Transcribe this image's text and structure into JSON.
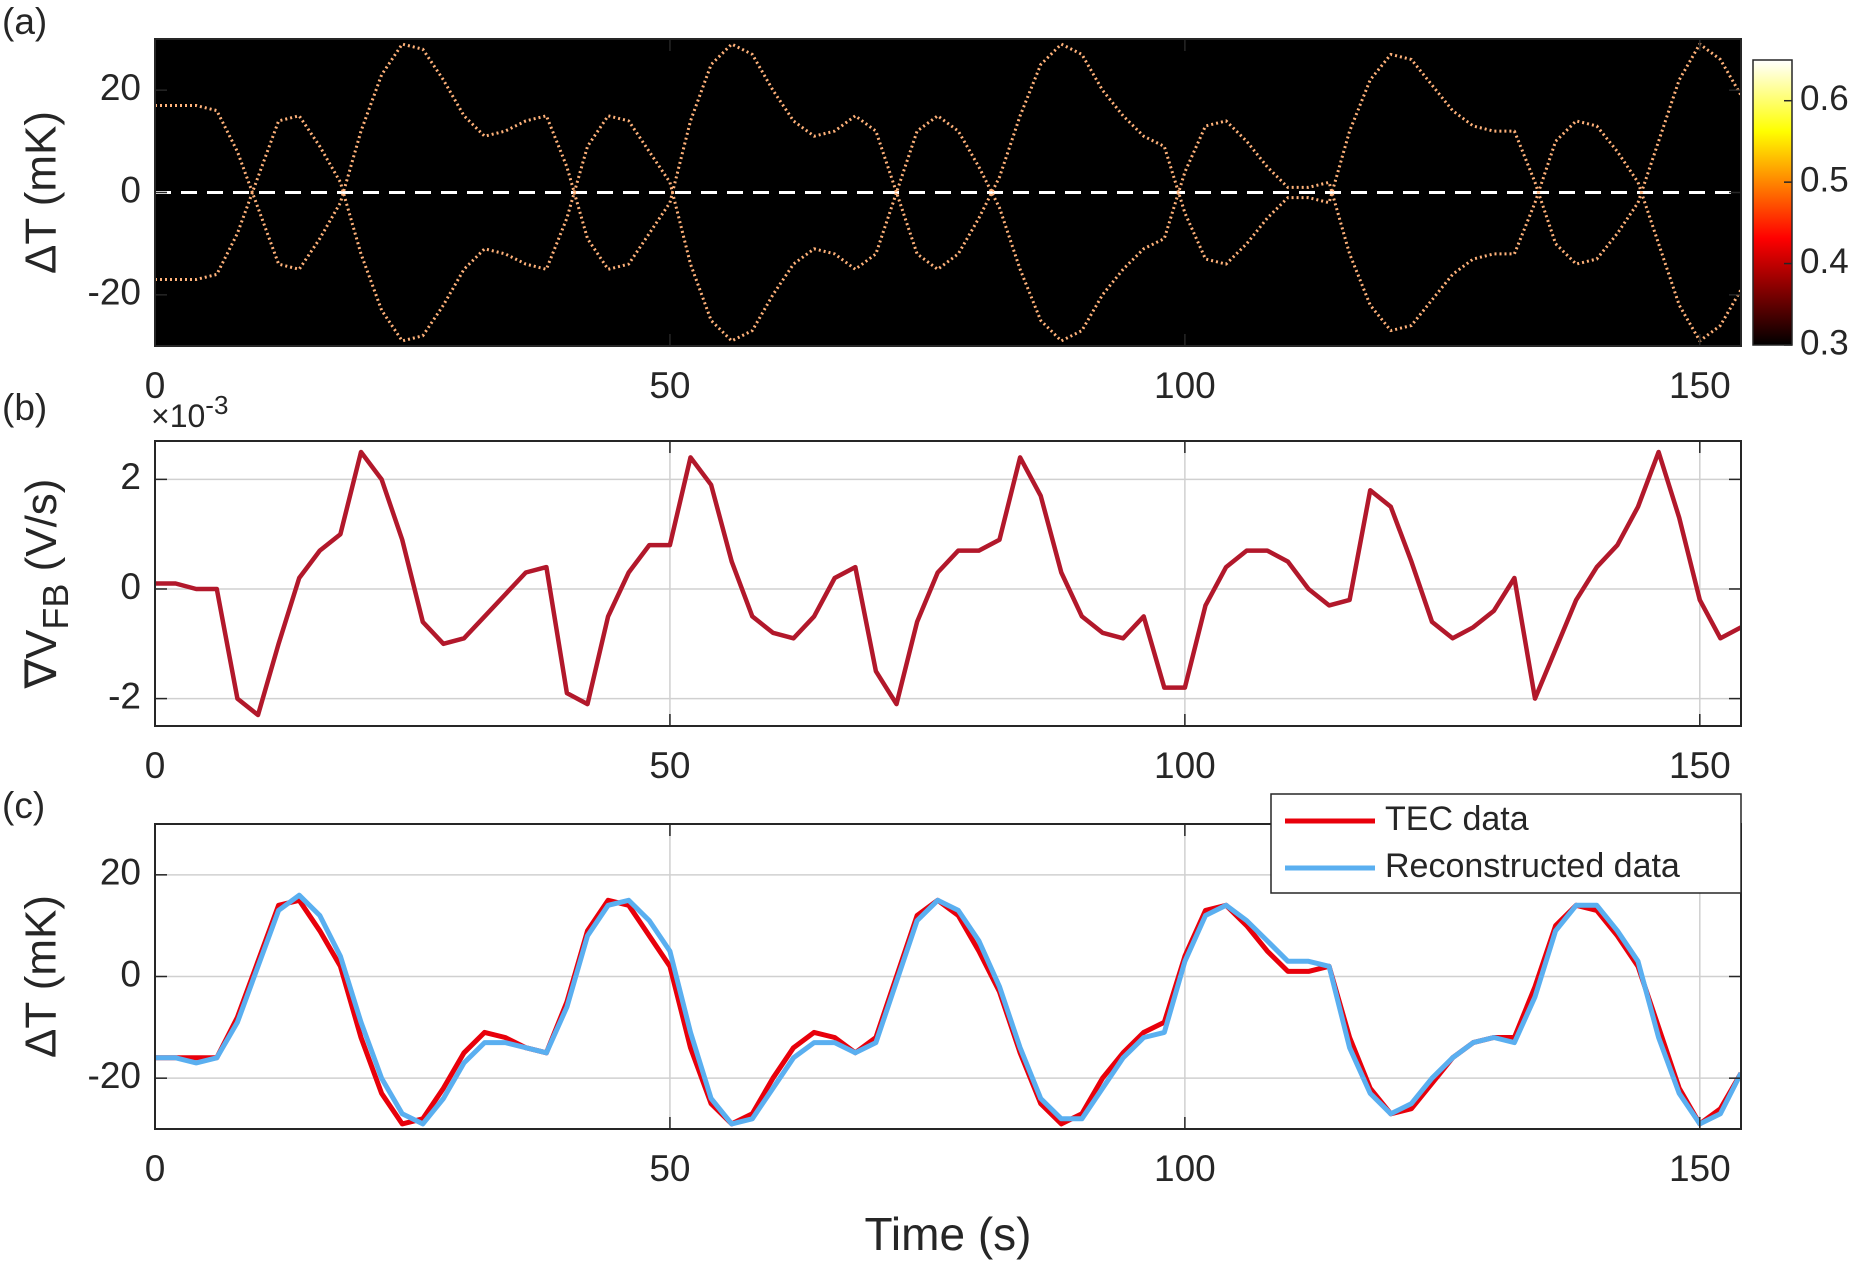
{
  "chart_data": [
    {
      "type": "heatmap-trace",
      "panel_label": "(a)",
      "ylabel": "ΔT (mK)",
      "x": [
        0,
        2,
        4,
        6,
        8,
        10,
        12,
        14,
        16,
        18,
        20,
        22,
        24,
        26,
        28,
        30,
        32,
        34,
        36,
        38,
        40,
        42,
        44,
        46,
        48,
        50,
        52,
        54,
        56,
        58,
        60,
        62,
        64,
        66,
        68,
        70,
        72,
        74,
        76,
        78,
        80,
        82,
        84,
        86,
        88,
        90,
        92,
        94,
        96,
        98,
        100,
        102,
        104,
        106,
        108,
        110,
        112,
        114,
        116,
        118,
        120,
        122,
        124,
        126,
        128,
        130,
        132,
        134,
        136,
        138,
        140,
        142,
        144,
        146,
        148,
        150,
        152,
        154
      ],
      "series": [
        {
          "color": "#ffb27a",
          "values": [
            17,
            17,
            17,
            16,
            8,
            -3,
            -14,
            -15,
            -9,
            -2,
            12,
            23,
            29,
            28,
            22,
            15,
            11,
            12,
            14,
            15,
            5,
            -9,
            -15,
            -14,
            -8,
            -2,
            14,
            25,
            29,
            27,
            20,
            14,
            11,
            12,
            15,
            12,
            0,
            -12,
            -15,
            -12,
            -5,
            3,
            15,
            25,
            29,
            27,
            20,
            15,
            11,
            9,
            -4,
            -13,
            -14,
            -10,
            -5,
            -1,
            -1,
            -2,
            12,
            22,
            27,
            26,
            21,
            16,
            13,
            12,
            12,
            2,
            -10,
            -14,
            -13,
            -8,
            -2,
            10,
            22,
            29,
            26,
            19
          ]
        },
        {
          "color": "#ffb27a",
          "values": [
            -17,
            -17,
            -17,
            -16,
            -8,
            3,
            14,
            15,
            9,
            2,
            -12,
            -23,
            -29,
            -28,
            -22,
            -15,
            -11,
            -12,
            -14,
            -15,
            -5,
            9,
            15,
            14,
            8,
            2,
            -14,
            -25,
            -29,
            -27,
            -20,
            -14,
            -11,
            -12,
            -15,
            -12,
            0,
            12,
            15,
            12,
            5,
            -3,
            -15,
            -25,
            -29,
            -27,
            -20,
            -15,
            -11,
            -9,
            4,
            13,
            14,
            10,
            5,
            1,
            1,
            2,
            -12,
            -22,
            -27,
            -26,
            -21,
            -16,
            -13,
            -12,
            -12,
            -2,
            10,
            14,
            13,
            8,
            2,
            -10,
            -22,
            -29,
            -26,
            -19
          ]
        }
      ],
      "hline": 0,
      "xlim": [
        0,
        154
      ],
      "xticks": [
        0,
        50,
        100,
        150
      ],
      "ylim": [
        -30,
        30
      ],
      "yticks": [
        -20,
        0,
        20
      ],
      "colorbar": {
        "colormap": "hot",
        "lim": [
          0.3,
          0.65
        ],
        "ticks": [
          0.3,
          0.4,
          0.5,
          0.6
        ]
      }
    },
    {
      "type": "line",
      "panel_label": "(b)",
      "ylabel": {
        "symbol": "∇V",
        "subscript": "FB",
        "unit": "(V/s)"
      },
      "y_multiplier": {
        "base": "×10",
        "exponent": "-3"
      },
      "x": [
        0,
        2,
        4,
        6,
        8,
        10,
        12,
        14,
        16,
        18,
        20,
        22,
        24,
        26,
        28,
        30,
        32,
        34,
        36,
        38,
        40,
        42,
        44,
        46,
        48,
        50,
        52,
        54,
        56,
        58,
        60,
        62,
        64,
        66,
        68,
        70,
        72,
        74,
        76,
        78,
        80,
        82,
        84,
        86,
        88,
        90,
        92,
        94,
        96,
        98,
        100,
        102,
        104,
        106,
        108,
        110,
        112,
        114,
        116,
        118,
        120,
        122,
        124,
        126,
        128,
        130,
        132,
        134,
        136,
        138,
        140,
        142,
        144,
        146,
        148,
        150,
        152,
        154
      ],
      "series": [
        {
          "color": "#b2182b",
          "values": [
            0.1,
            0.1,
            0.0,
            0.0,
            -2.0,
            -2.3,
            -1.0,
            0.2,
            0.7,
            1.0,
            2.5,
            2.0,
            0.9,
            -0.6,
            -1.0,
            -0.9,
            -0.5,
            -0.1,
            0.3,
            0.4,
            -1.9,
            -2.1,
            -0.5,
            0.3,
            0.8,
            0.8,
            2.4,
            1.9,
            0.5,
            -0.5,
            -0.8,
            -0.9,
            -0.5,
            0.2,
            0.4,
            -1.5,
            -2.1,
            -0.6,
            0.3,
            0.7,
            0.7,
            0.9,
            2.4,
            1.7,
            0.3,
            -0.5,
            -0.8,
            -0.9,
            -0.5,
            -1.8,
            -1.8,
            -0.3,
            0.4,
            0.7,
            0.7,
            0.5,
            0.0,
            -0.3,
            -0.2,
            1.8,
            1.5,
            0.5,
            -0.6,
            -0.9,
            -0.7,
            -0.4,
            0.2,
            -2.0,
            -1.1,
            -0.2,
            0.4,
            0.8,
            1.5,
            2.5,
            1.3,
            -0.2,
            -0.9,
            -0.7
          ]
        }
      ],
      "grid": true,
      "xlim": [
        0,
        154
      ],
      "xticks": [
        0,
        50,
        100,
        150
      ],
      "ylim": [
        -2.5,
        2.7
      ],
      "yticks": [
        -2,
        0,
        2
      ]
    },
    {
      "type": "line",
      "panel_label": "(c)",
      "ylabel": "ΔT (mK)",
      "xlabel": "Time (s)",
      "x": [
        0,
        2,
        4,
        6,
        8,
        10,
        12,
        14,
        16,
        18,
        20,
        22,
        24,
        26,
        28,
        30,
        32,
        34,
        36,
        38,
        40,
        42,
        44,
        46,
        48,
        50,
        52,
        54,
        56,
        58,
        60,
        62,
        64,
        66,
        68,
        70,
        72,
        74,
        76,
        78,
        80,
        82,
        84,
        86,
        88,
        90,
        92,
        94,
        96,
        98,
        100,
        102,
        104,
        106,
        108,
        110,
        112,
        114,
        116,
        118,
        120,
        122,
        124,
        126,
        128,
        130,
        132,
        134,
        136,
        138,
        140,
        142,
        144,
        146,
        148,
        150,
        152,
        154
      ],
      "series": [
        {
          "name": "TEC data",
          "color": "#e8000b",
          "values": [
            -16,
            -16,
            -16,
            -16,
            -8,
            3,
            14,
            15,
            9,
            2,
            -12,
            -23,
            -29,
            -28,
            -22,
            -15,
            -11,
            -12,
            -14,
            -15,
            -5,
            9,
            15,
            14,
            8,
            2,
            -14,
            -25,
            -29,
            -27,
            -20,
            -14,
            -11,
            -12,
            -15,
            -12,
            0,
            12,
            15,
            12,
            5,
            -3,
            -15,
            -25,
            -29,
            -27,
            -20,
            -15,
            -11,
            -9,
            4,
            13,
            14,
            10,
            5,
            1,
            1,
            2,
            -12,
            -22,
            -27,
            -26,
            -21,
            -16,
            -13,
            -12,
            -12,
            -2,
            10,
            14,
            13,
            8,
            2,
            -10,
            -22,
            -29,
            -26,
            -19
          ]
        },
        {
          "name": "Reconstructed data",
          "color": "#5aaff0",
          "values": [
            -16,
            -16,
            -17,
            -16,
            -9,
            2,
            13,
            16,
            12,
            4,
            -9,
            -20,
            -27,
            -29,
            -24,
            -17,
            -13,
            -13,
            -14,
            -15,
            -6,
            8,
            14,
            15,
            11,
            5,
            -11,
            -24,
            -29,
            -28,
            -22,
            -16,
            -13,
            -13,
            -15,
            -13,
            -1,
            11,
            15,
            13,
            7,
            -2,
            -14,
            -24,
            -28,
            -28,
            -22,
            -16,
            -12,
            -11,
            3,
            12,
            14,
            11,
            7,
            3,
            3,
            2,
            -14,
            -23,
            -27,
            -25,
            -20,
            -16,
            -13,
            -12,
            -13,
            -4,
            9,
            14,
            14,
            9,
            3,
            -12,
            -23,
            -29,
            -27,
            -19
          ]
        }
      ],
      "grid": true,
      "legend": "upper right",
      "xlim": [
        0,
        154
      ],
      "xticks": [
        0,
        50,
        100,
        150
      ],
      "ylim": [
        -30,
        30
      ],
      "yticks": [
        -20,
        0,
        20
      ]
    }
  ]
}
